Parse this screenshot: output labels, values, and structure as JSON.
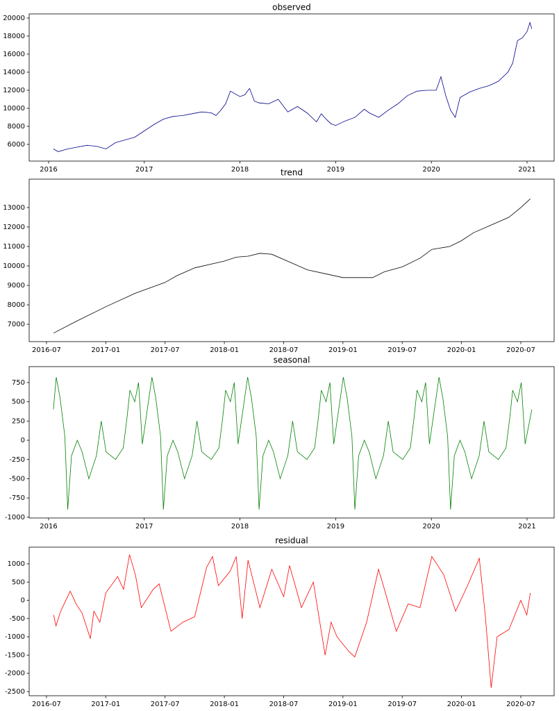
{
  "chart_data": [
    {
      "type": "line",
      "title": "observed",
      "color": "#00008b",
      "xlim": [
        2015.797,
        2021.283
      ],
      "ylim": [
        4150,
        20460
      ],
      "xticks": [
        2016,
        2017,
        2018,
        2019,
        2020,
        2021
      ],
      "yticks": [
        6000,
        8000,
        10000,
        12000,
        14000,
        16000,
        18000,
        20000
      ],
      "x": [
        2016.05,
        2016.1,
        2016.2,
        2016.3,
        2016.4,
        2016.5,
        2016.6,
        2016.7,
        2016.8,
        2016.9,
        2017.0,
        2017.1,
        2017.2,
        2017.3,
        2017.4,
        2017.5,
        2017.6,
        2017.7,
        2017.75,
        2017.8,
        2017.85,
        2017.9,
        2018.0,
        2018.05,
        2018.1,
        2018.15,
        2018.2,
        2018.3,
        2018.4,
        2018.5,
        2018.6,
        2018.7,
        2018.8,
        2018.85,
        2018.9,
        2018.95,
        2019.0,
        2019.1,
        2019.2,
        2019.3,
        2019.35,
        2019.45,
        2019.55,
        2019.65,
        2019.75,
        2019.85,
        2019.95,
        2020.05,
        2020.1,
        2020.15,
        2020.2,
        2020.25,
        2020.3,
        2020.4,
        2020.5,
        2020.6,
        2020.7,
        2020.8,
        2020.85,
        2020.9,
        2020.95,
        2021.0,
        2021.03,
        2021.05
      ],
      "values": [
        5500,
        5200,
        5500,
        5700,
        5900,
        5800,
        5500,
        6200,
        6500,
        6800,
        7500,
        8200,
        8800,
        9100,
        9200,
        9400,
        9600,
        9500,
        9200,
        9800,
        10500,
        11900,
        11300,
        11500,
        12200,
        10800,
        10600,
        10500,
        11000,
        9600,
        10200,
        9500,
        8500,
        9400,
        8800,
        8300,
        8100,
        8600,
        9000,
        9900,
        9500,
        9000,
        9800,
        10500,
        11400,
        11900,
        12000,
        12000,
        13500,
        11400,
        9800,
        9000,
        11200,
        11800,
        12200,
        12500,
        13000,
        14000,
        15000,
        17500,
        17800,
        18500,
        19500,
        18800
      ]
    },
    {
      "type": "line",
      "title": "trend",
      "color": "#000000",
      "xlim": [
        2016.354,
        2020.781
      ],
      "ylim": [
        6110,
        14460
      ],
      "xticks": [
        {
          "value": 2016.5,
          "label": "2016-07"
        },
        {
          "value": 2017.0,
          "label": "2017-01"
        },
        {
          "value": 2017.5,
          "label": "2017-07"
        },
        {
          "value": 2018.0,
          "label": "2018-01"
        },
        {
          "value": 2018.5,
          "label": "2018-07"
        },
        {
          "value": 2019.0,
          "label": "2019-01"
        },
        {
          "value": 2019.5,
          "label": "2019-07"
        },
        {
          "value": 2020.0,
          "label": "2020-01"
        },
        {
          "value": 2020.5,
          "label": "2020-07"
        }
      ],
      "yticks": [
        7000,
        8000,
        9000,
        10000,
        11000,
        12000,
        13000
      ],
      "x": [
        2016.56,
        2016.75,
        2017.0,
        2017.25,
        2017.5,
        2017.6,
        2017.75,
        2018.0,
        2018.1,
        2018.2,
        2018.3,
        2018.4,
        2018.55,
        2018.7,
        2018.85,
        2019.0,
        2019.1,
        2019.25,
        2019.35,
        2019.5,
        2019.65,
        2019.75,
        2019.9,
        2020.0,
        2020.1,
        2020.25,
        2020.4,
        2020.5,
        2020.58
      ],
      "values": [
        6550,
        7150,
        7900,
        8600,
        9150,
        9500,
        9900,
        10250,
        10450,
        10500,
        10650,
        10600,
        10200,
        9800,
        9600,
        9400,
        9400,
        9400,
        9700,
        9950,
        10400,
        10850,
        11000,
        11300,
        11700,
        12100,
        12500,
        13000,
        13450
      ]
    },
    {
      "type": "line",
      "title": "seasonal",
      "color": "#008000",
      "xlim": [
        2015.797,
        2021.283
      ],
      "ylim": [
        -1010,
        957
      ],
      "xticks": [
        2016,
        2017,
        2018,
        2019,
        2020,
        2021
      ],
      "yticks": [
        -1000,
        -750,
        -500,
        -250,
        0,
        250,
        500,
        750
      ],
      "x": [
        2016.05,
        2016.08,
        2016.12,
        2016.17,
        2016.2,
        2016.24,
        2016.3,
        2016.35,
        2016.42,
        2016.5,
        2016.55,
        2016.6,
        2016.7,
        2016.78,
        2016.82,
        2016.85,
        2016.9,
        2016.94,
        2016.98,
        2017.08,
        2017.12,
        2017.17,
        2017.2,
        2017.24,
        2017.3,
        2017.35,
        2017.42,
        2017.5,
        2017.55,
        2017.6,
        2017.7,
        2017.78,
        2017.82,
        2017.85,
        2017.9,
        2017.94,
        2017.98,
        2018.08,
        2018.12,
        2018.17,
        2018.2,
        2018.24,
        2018.3,
        2018.35,
        2018.42,
        2018.5,
        2018.55,
        2018.6,
        2018.7,
        2018.78,
        2018.82,
        2018.85,
        2018.9,
        2018.94,
        2018.98,
        2019.08,
        2019.12,
        2019.17,
        2019.2,
        2019.24,
        2019.3,
        2019.35,
        2019.42,
        2019.5,
        2019.55,
        2019.6,
        2019.7,
        2019.78,
        2019.82,
        2019.85,
        2019.9,
        2019.94,
        2019.98,
        2020.08,
        2020.12,
        2020.17,
        2020.2,
        2020.24,
        2020.3,
        2020.35,
        2020.42,
        2020.5,
        2020.55,
        2020.6,
        2020.7,
        2020.78,
        2020.82,
        2020.85,
        2020.9,
        2020.94,
        2020.98,
        2021.05
      ],
      "values": [
        400,
        820,
        550,
        50,
        -900,
        -200,
        0,
        -150,
        -500,
        -200,
        250,
        -150,
        -250,
        -100,
        300,
        650,
        500,
        750,
        -50,
        820,
        550,
        50,
        -900,
        -200,
        0,
        -150,
        -500,
        -200,
        250,
        -150,
        -250,
        -100,
        300,
        650,
        500,
        750,
        -50,
        820,
        550,
        50,
        -900,
        -200,
        0,
        -150,
        -500,
        -200,
        250,
        -150,
        -250,
        -100,
        300,
        650,
        500,
        750,
        -50,
        820,
        550,
        50,
        -900,
        -200,
        0,
        -150,
        -500,
        -200,
        250,
        -150,
        -250,
        -100,
        300,
        650,
        500,
        750,
        -50,
        820,
        550,
        50,
        -900,
        -200,
        0,
        -150,
        -500,
        -200,
        250,
        -150,
        -250,
        -100,
        300,
        650,
        500,
        750,
        -50,
        400
      ]
    },
    {
      "type": "line",
      "title": "residual",
      "color": "#ff0000",
      "xlim": [
        2016.354,
        2020.781
      ],
      "ylim": [
        -2614,
        1456
      ],
      "xticks": [
        {
          "value": 2016.5,
          "label": "2016-07"
        },
        {
          "value": 2017.0,
          "label": "2017-01"
        },
        {
          "value": 2017.5,
          "label": "2017-07"
        },
        {
          "value": 2018.0,
          "label": "2018-01"
        },
        {
          "value": 2018.5,
          "label": "2018-07"
        },
        {
          "value": 2019.0,
          "label": "2019-01"
        },
        {
          "value": 2019.5,
          "label": "2019-07"
        },
        {
          "value": 2020.0,
          "label": "2020-01"
        },
        {
          "value": 2020.5,
          "label": "2020-07"
        }
      ],
      "yticks": [
        -2500,
        -2000,
        -1500,
        -1000,
        -500,
        0,
        500,
        1000
      ],
      "x": [
        2016.56,
        2016.58,
        2016.62,
        2016.7,
        2016.75,
        2016.8,
        2016.87,
        2016.9,
        2016.95,
        2017.0,
        2017.1,
        2017.15,
        2017.2,
        2017.25,
        2017.3,
        2017.4,
        2017.45,
        2017.55,
        2017.65,
        2017.75,
        2017.85,
        2017.9,
        2017.95,
        2018.05,
        2018.1,
        2018.15,
        2018.2,
        2018.3,
        2018.4,
        2018.5,
        2018.55,
        2018.65,
        2018.75,
        2018.85,
        2018.9,
        2018.95,
        2019.05,
        2019.1,
        2019.2,
        2019.3,
        2019.35,
        2019.45,
        2019.55,
        2019.65,
        2019.75,
        2019.85,
        2019.95,
        2020.05,
        2020.15,
        2020.2,
        2020.25,
        2020.3,
        2020.4,
        2020.5,
        2020.55,
        2020.58
      ],
      "values": [
        -400,
        -700,
        -300,
        250,
        -100,
        -350,
        -1050,
        -300,
        -600,
        200,
        650,
        300,
        1250,
        700,
        -200,
        300,
        450,
        -850,
        -600,
        -450,
        900,
        1200,
        400,
        800,
        1200,
        -500,
        1100,
        -200,
        850,
        100,
        950,
        -200,
        500,
        -1500,
        -600,
        -1000,
        -1400,
        -1550,
        -600,
        850,
        300,
        -850,
        -100,
        -200,
        1200,
        700,
        -300,
        400,
        1150,
        -400,
        -2400,
        -1000,
        -800,
        0,
        -400,
        200
      ]
    }
  ]
}
